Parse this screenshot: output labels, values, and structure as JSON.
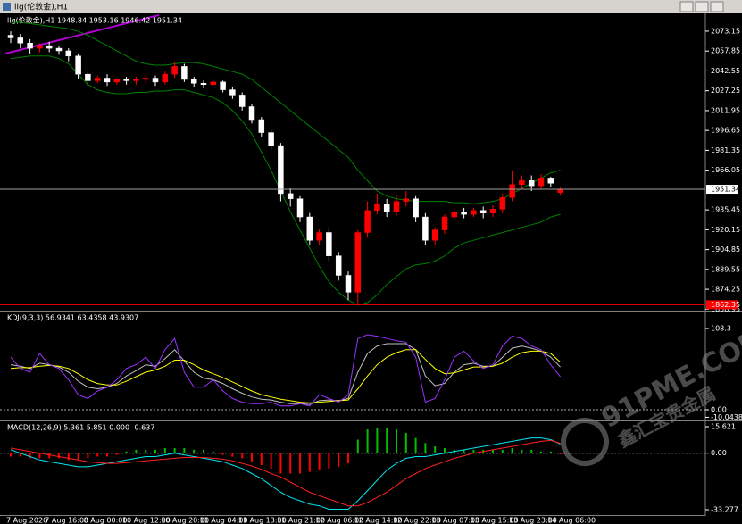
{
  "window": {
    "title": "llg(伦敦金),H1"
  },
  "watermark": {
    "brand": "91PME.COM",
    "name": "鑫汇宝贵金属"
  },
  "chart_data": [
    {
      "type": "candlestick",
      "title": "llg(伦敦金),H1  1948.84 1953.16 1946.42 1951.34",
      "open": [
        2070,
        2068,
        2064,
        2060,
        2062,
        2060,
        2058,
        2054,
        2040,
        2035,
        2037,
        2034,
        2036,
        2035,
        2036,
        2037,
        2034,
        2040,
        2046,
        2036,
        2033,
        2032,
        2034,
        2028,
        2024,
        2015,
        2005,
        1995,
        1985,
        1948,
        1944,
        1930,
        1912,
        1918,
        1900,
        1885,
        1872,
        1918,
        1935,
        1940,
        1934,
        1942,
        1944,
        1930,
        1912,
        1920,
        1930,
        1934,
        1932,
        1935,
        1933,
        1936,
        1945,
        1955,
        1958,
        1954,
        1960,
        1948.84
      ],
      "high": [
        2073,
        2071,
        2067,
        2064,
        2065,
        2062,
        2060,
        2056,
        2042,
        2039,
        2040,
        2037,
        2038,
        2038,
        2039,
        2039,
        2042,
        2050,
        2048,
        2038,
        2035,
        2036,
        2035,
        2030,
        2026,
        2017,
        2007,
        1997,
        1987,
        1952,
        1946,
        1933,
        1921,
        1922,
        1903,
        1888,
        1920,
        1942,
        1948,
        1944,
        1947,
        1950,
        1946,
        1933,
        1922,
        1932,
        1936,
        1937,
        1937,
        1938,
        1939,
        1948,
        1966,
        1962,
        1962,
        1963,
        1961,
        1953.16
      ],
      "low": [
        2064,
        2060,
        2056,
        2057,
        2057,
        2055,
        2050,
        2036,
        2031,
        2033,
        2031,
        2032,
        2032,
        2032,
        2033,
        2031,
        2032,
        2037,
        2034,
        2030,
        2029,
        2031,
        2026,
        2021,
        2012,
        2002,
        1992,
        1982,
        1942,
        1938,
        1926,
        1908,
        1908,
        1896,
        1881,
        1866,
        1863,
        1914,
        1932,
        1930,
        1931,
        1938,
        1926,
        1908,
        1908,
        1917,
        1927,
        1929,
        1930,
        1929,
        1930,
        1933,
        1942,
        1951,
        1950,
        1951,
        1953,
        1946.42
      ],
      "close": [
        2068,
        2064,
        2060,
        2062,
        2060,
        2058,
        2054,
        2040,
        2035,
        2037,
        2034,
        2036,
        2035,
        2036,
        2037,
        2034,
        2040,
        2046,
        2036,
        2033,
        2032,
        2034,
        2028,
        2024,
        2015,
        2005,
        1995,
        1985,
        1948,
        1944,
        1930,
        1912,
        1918,
        1900,
        1885,
        1872,
        1918,
        1935,
        1940,
        1934,
        1942,
        1944,
        1930,
        1912,
        1920,
        1930,
        1934,
        1932,
        1935,
        1933,
        1936,
        1945,
        1955,
        1958,
        1954,
        1960,
        1956,
        1951.34
      ],
      "up_color": "#ff0000",
      "down_color": "#ffffff",
      "bands": {
        "color": "#008000",
        "upper": [
          2080,
          2080,
          2079,
          2078,
          2077,
          2076,
          2075,
          2073,
          2070,
          2066,
          2062,
          2058,
          2054,
          2050,
          2048,
          2047,
          2047,
          2048,
          2049,
          2049,
          2048,
          2046,
          2044,
          2042,
          2040,
          2036,
          2030,
          2024,
          2018,
          2012,
          2006,
          2000,
          1994,
          1988,
          1982,
          1976,
          1966,
          1958,
          1950,
          1946,
          1944,
          1943,
          1942,
          1942,
          1942,
          1942,
          1941,
          1941,
          1940,
          1941,
          1942,
          1944,
          1948,
          1952,
          1956,
          1960,
          1964,
          1966
        ],
        "lower": [
          2052,
          2053,
          2054,
          2054,
          2054,
          2052,
          2048,
          2040,
          2032,
          2028,
          2026,
          2025,
          2025,
          2026,
          2026,
          2027,
          2027,
          2028,
          2028,
          2026,
          2024,
          2022,
          2018,
          2012,
          2004,
          1994,
          1980,
          1966,
          1950,
          1934,
          1920,
          1906,
          1892,
          1880,
          1872,
          1866,
          1862,
          1864,
          1870,
          1878,
          1884,
          1890,
          1893,
          1894,
          1896,
          1900,
          1906,
          1910,
          1912,
          1914,
          1916,
          1918,
          1920,
          1922,
          1924,
          1926,
          1930,
          1932
        ]
      },
      "current_price": 1951.34,
      "ref_line": {
        "value": 1862.35,
        "color": "#ff0000"
      },
      "ylim": [
        1858.5,
        2085.5
      ],
      "yticks": [
        2073.15,
        2057.85,
        2042.55,
        2027.25,
        2011.95,
        1996.65,
        1981.35,
        1966.05,
        1935.45,
        1920.15,
        1904.85,
        1889.55,
        1874.25,
        1858.95
      ],
      "grid": false
    },
    {
      "type": "line",
      "title": "KDJ(9,3,3) 56.9341 63.4358 43.9307",
      "series": [
        {
          "color": "#c0c0c0",
          "values": [
            60,
            58,
            55,
            62,
            60,
            57,
            50,
            38,
            30,
            28,
            30,
            35,
            45,
            52,
            60,
            58,
            68,
            80,
            65,
            50,
            42,
            40,
            35,
            28,
            22,
            17,
            14,
            13,
            10,
            8,
            8,
            7,
            12,
            13,
            12,
            15,
            50,
            75,
            85,
            88,
            88,
            88,
            80,
            45,
            32,
            35,
            50,
            60,
            62,
            58,
            58,
            70,
            82,
            85,
            82,
            78,
            70,
            56.93
          ]
        },
        {
          "color": "#ffff00",
          "values": [
            55,
            56,
            56,
            58,
            59,
            58,
            55,
            48,
            40,
            35,
            33,
            33,
            38,
            44,
            50,
            53,
            58,
            66,
            66,
            60,
            53,
            48,
            43,
            37,
            31,
            25,
            20,
            17,
            14,
            12,
            10,
            9,
            10,
            11,
            12,
            13,
            28,
            45,
            60,
            70,
            76,
            80,
            80,
            67,
            55,
            48,
            49,
            53,
            57,
            57,
            58,
            62,
            70,
            76,
            78,
            78,
            75,
            63.44
          ]
        },
        {
          "color": "#9933ff",
          "values": [
            70,
            55,
            50,
            75,
            60,
            55,
            40,
            20,
            15,
            25,
            30,
            40,
            55,
            60,
            70,
            55,
            80,
            95,
            50,
            30,
            30,
            40,
            25,
            15,
            10,
            8,
            8,
            10,
            5,
            5,
            8,
            5,
            20,
            15,
            10,
            20,
            95,
            100,
            98,
            95,
            92,
            90,
            70,
            10,
            15,
            40,
            70,
            78,
            65,
            55,
            60,
            85,
            98,
            95,
            85,
            80,
            60,
            43.93
          ]
        }
      ],
      "ylim": [
        -13.1,
        129.7
      ],
      "yticks": [
        108.3,
        {
          "value": 0,
          "label": "0.00"
        },
        -10.0438
      ]
    },
    {
      "type": "macd",
      "title": "MACD(12,26,9) 5.361 5.851 0.000 -0.637",
      "histogram": {
        "up_color": "#00c000",
        "down_color": "#ff0000",
        "values": [
          -2,
          -2,
          -3,
          -3,
          -3,
          -3,
          -4,
          -4,
          -3,
          -2,
          -2,
          -1,
          1,
          2,
          2,
          2,
          3,
          3,
          3,
          2,
          2,
          1,
          -1,
          -2,
          -3,
          -5,
          -7,
          -9,
          -12,
          -12,
          -12,
          -11,
          -10,
          -9,
          -8,
          -6,
          8,
          14,
          15,
          15,
          14,
          12,
          9,
          6,
          4,
          3,
          2,
          2,
          2,
          2,
          2,
          2,
          3,
          2,
          2,
          1,
          1,
          -0.637
        ]
      },
      "series": [
        {
          "color": "#00e5ee",
          "values": [
            2,
            0,
            -2,
            -4,
            -5,
            -6,
            -7,
            -8,
            -8,
            -7,
            -6,
            -5,
            -4,
            -3,
            -2,
            -2,
            -1,
            0,
            -1,
            -2,
            -3,
            -4,
            -5,
            -7,
            -9,
            -12,
            -15,
            -19,
            -23,
            -26,
            -28,
            -30,
            -31,
            -33,
            -33,
            -33,
            -28,
            -22,
            -16,
            -10,
            -6,
            -3,
            -2,
            -2,
            -1,
            0,
            1,
            2,
            3,
            4,
            5,
            6,
            7,
            8,
            9,
            9,
            8,
            5.361
          ]
        },
        {
          "color": "#ff2020",
          "values": [
            3,
            2,
            1,
            0,
            -1,
            -2,
            -3,
            -4,
            -5,
            -5.5,
            -6,
            -6,
            -5.5,
            -5,
            -4.5,
            -4,
            -3.5,
            -3,
            -2.5,
            -2.5,
            -2.5,
            -3,
            -3.5,
            -4.5,
            -6,
            -7.5,
            -9.5,
            -12,
            -14,
            -17,
            -20,
            -23,
            -25,
            -27,
            -29,
            -31,
            -31,
            -29,
            -26,
            -23,
            -19,
            -15,
            -12,
            -9,
            -7,
            -5,
            -3,
            -1.5,
            0,
            1,
            2,
            3,
            4,
            5,
            6,
            7,
            7.5,
            5.851
          ]
        }
      ],
      "ylim": [
        -36.43,
        18.25
      ],
      "yticks": [
        15.621,
        {
          "value": 0,
          "label": "0.00"
        },
        -33.277
      ],
      "time_labels": [
        "7 Aug 2020",
        "7 Aug 16:00",
        "8 Aug 00:00",
        "10 Aug 12:00",
        "10 Aug 20:00",
        "11 Aug 04:00",
        "11 Aug 13:00",
        "11 Aug 21:00",
        "12 Aug 06:00",
        "12 Aug 14:00",
        "12 Aug 22:00",
        "13 Aug 07:00",
        "13 Aug 15:00",
        "13 Aug 23:00",
        "14 Aug 06:00"
      ]
    }
  ]
}
